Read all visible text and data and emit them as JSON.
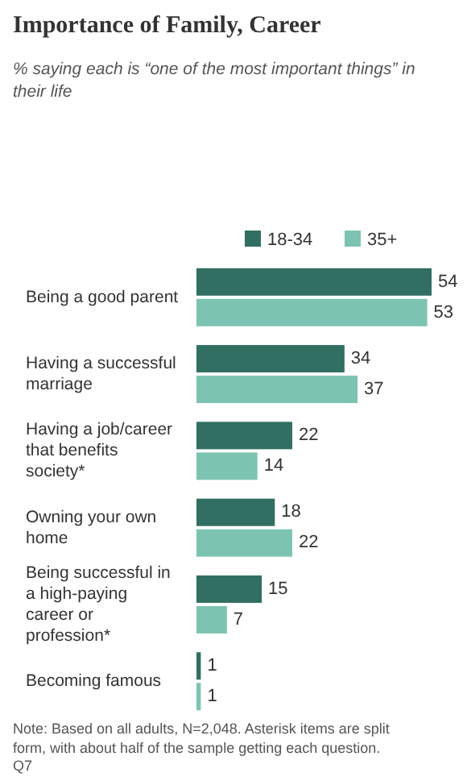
{
  "chart_data": {
    "type": "bar",
    "orientation": "horizontal",
    "title": "Importance of Family, Career",
    "subtitle": "% saying each is “one of the most important things” in their life",
    "categories": [
      "Being a good parent",
      "Having a successful marriage",
      "Having a job/career that benefits society*",
      "Owning your own home",
      "Being successful in a high-paying career or profession*",
      "Becoming famous"
    ],
    "series": [
      {
        "name": "18-34",
        "color": "#316f62",
        "values": [
          54,
          34,
          22,
          18,
          15,
          1
        ]
      },
      {
        "name": "35+",
        "color": "#7cc4b1",
        "values": [
          53,
          37,
          14,
          22,
          7,
          1
        ]
      }
    ],
    "data_labels": true,
    "legend": "top",
    "grid": false,
    "annotations": [
      "Note: Based on all adults, N=2,048. Asterisk items are split form, with about half of the sample getting each question.",
      "Q7"
    ]
  }
}
